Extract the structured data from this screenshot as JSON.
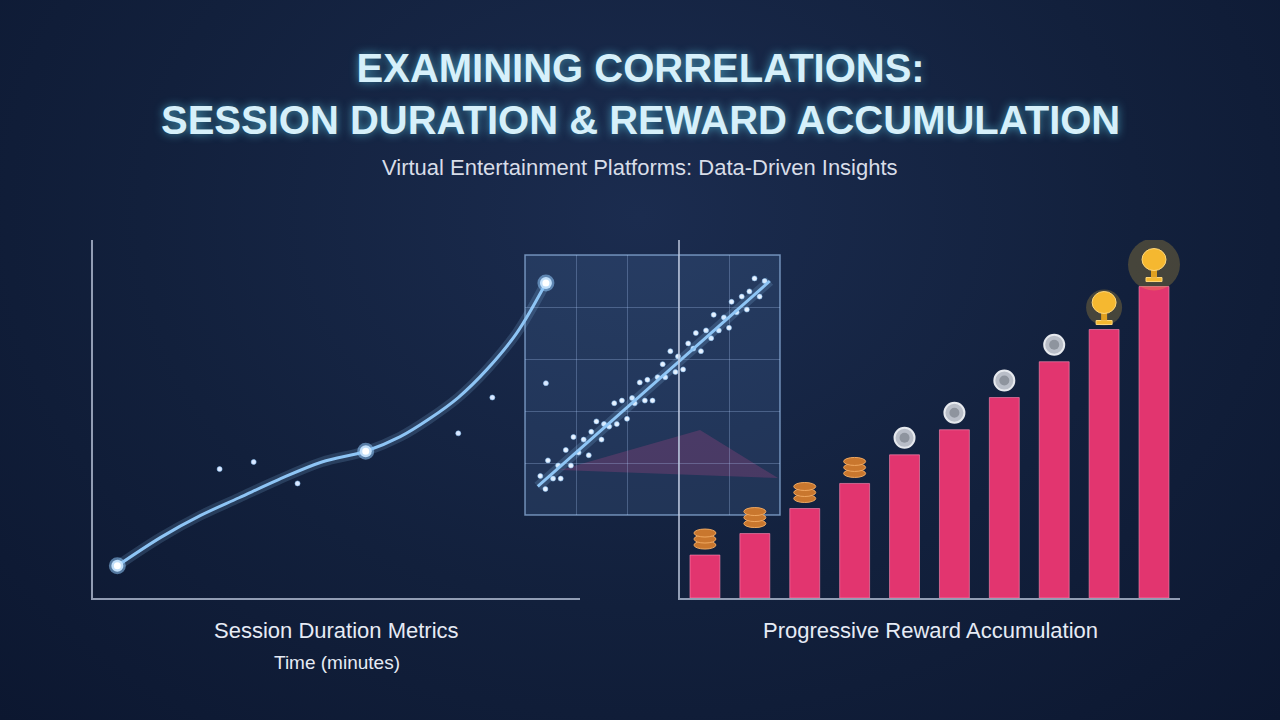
{
  "title": [
    "EXAMINING CORRELATIONS:",
    "SESSION DURATION & REWARD ACCUMULATION"
  ],
  "subtitle": "Virtual Entertainment Platforms: Data-Driven Insights",
  "chart_data": [
    {
      "type": "line",
      "title": "Session Duration Metrics",
      "xlabel": "Time (minutes)",
      "xlim": [
        0,
        100
      ],
      "ylim": [
        0,
        100
      ],
      "xticks": [],
      "yticks": [],
      "grid": false,
      "tick_labels": false,
      "series": [
        {
          "type": "line",
          "x": [
            5,
            14,
            22,
            30,
            38,
            47,
            56,
            63,
            69,
            75,
            81,
            87,
            93
          ],
          "values": [
            9,
            17,
            23,
            28,
            33,
            38,
            41,
            45,
            50,
            56,
            64,
            74,
            88
          ],
          "color": "#8ec5f5",
          "line_style": "solid"
        },
        {
          "type": "scatter",
          "x": [
            5,
            56,
            93
          ],
          "values": [
            9,
            41,
            88
          ],
          "color": "#ffffff",
          "marker": "circle"
        },
        {
          "type": "scatter",
          "x": [
            26,
            33,
            42,
            75,
            82,
            93
          ],
          "values": [
            36,
            38,
            32,
            46,
            56,
            60
          ],
          "color": "#dbe8ff",
          "marker": "dot"
        }
      ]
    },
    {
      "type": "scatter",
      "xlim": [
        0,
        100
      ],
      "ylim": [
        0,
        100
      ],
      "xticks": [
        0,
        20,
        40,
        60,
        80,
        100
      ],
      "yticks": [
        0,
        20,
        40,
        60,
        80,
        100
      ],
      "grid": true,
      "tick_labels": false,
      "series": [
        {
          "type": "scatter",
          "color": "#e8f2ff",
          "marker": "dot",
          "x": [
            6,
            8,
            9,
            11,
            13,
            14,
            16,
            18,
            19,
            21,
            23,
            25,
            26,
            28,
            30,
            31,
            33,
            35,
            36,
            38,
            40,
            42,
            43,
            45,
            47,
            48,
            50,
            52,
            54,
            55,
            57,
            59,
            60,
            62,
            64,
            66,
            67,
            69,
            71,
            73,
            74,
            76,
            78,
            80,
            81,
            83,
            85,
            87,
            88,
            90,
            92,
            94
          ],
          "values": [
            15,
            10,
            21,
            14,
            19,
            14,
            25,
            19,
            30,
            24,
            29,
            23,
            32,
            36,
            29,
            35,
            34,
            43,
            35,
            44,
            37,
            45,
            43,
            51,
            44,
            52,
            44,
            53,
            58,
            53,
            63,
            55,
            61,
            56,
            66,
            64,
            70,
            63,
            71,
            68,
            77,
            71,
            76,
            72,
            82,
            78,
            84,
            79,
            86,
            91,
            84,
            90
          ]
        },
        {
          "type": "line",
          "x": [
            5,
            96
          ],
          "values": [
            11,
            90
          ],
          "color": "#8ec5f5",
          "line_style": "solid"
        }
      ]
    },
    {
      "type": "bar",
      "title": "Progressive Reward Accumulation",
      "categories": [
        null,
        null,
        null,
        null,
        null,
        null,
        null,
        null,
        null,
        null
      ],
      "values": [
        12,
        18,
        25,
        32,
        40,
        47,
        56,
        66,
        75,
        87
      ],
      "color": "#e2356f",
      "ylim": [
        0,
        100
      ],
      "yticks": [],
      "grid": false,
      "tick_labels": false
    }
  ]
}
